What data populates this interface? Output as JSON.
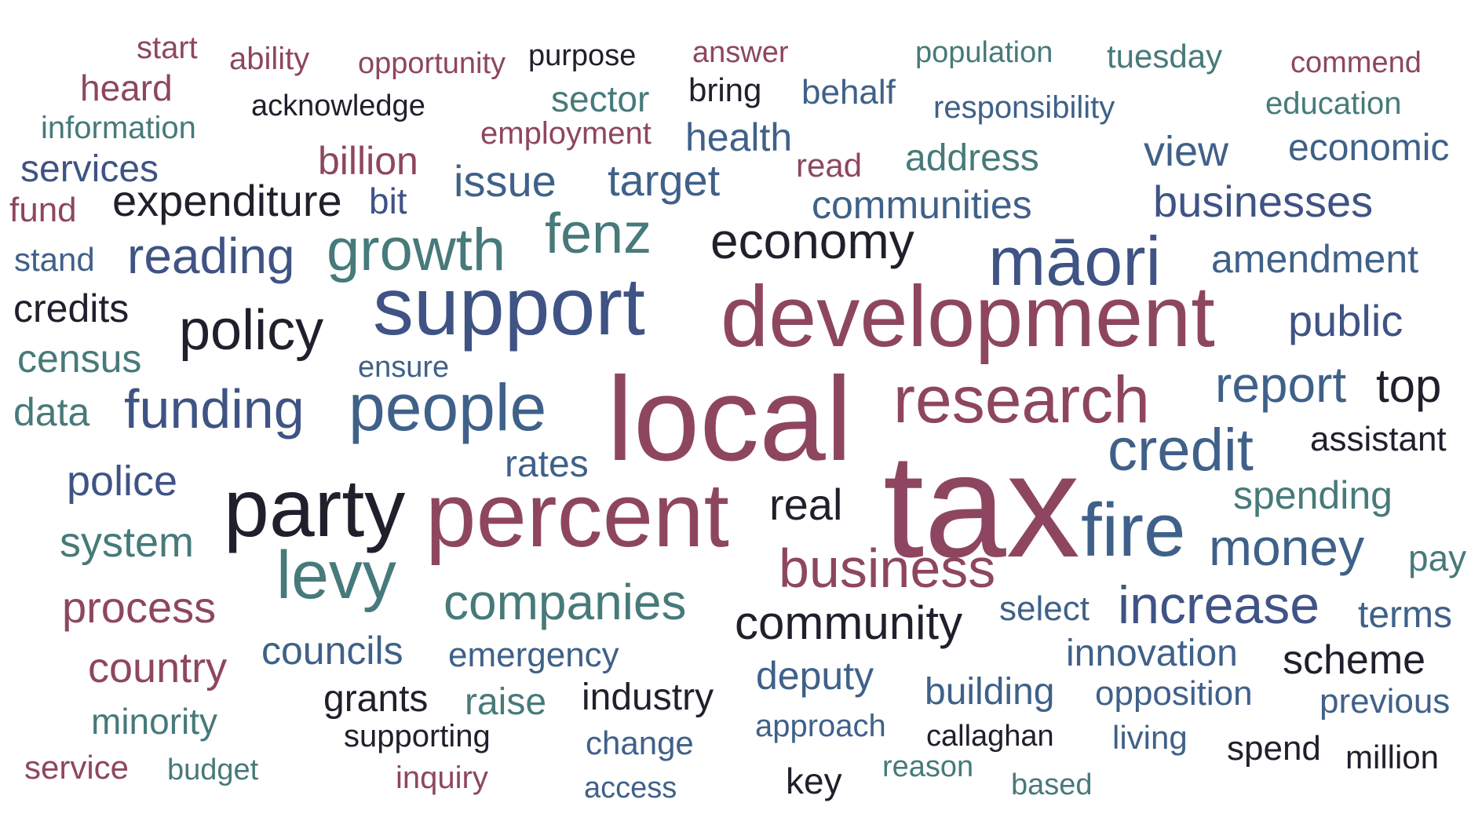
{
  "palette": {
    "crimson": "#8e4660",
    "navy": "#3f5384",
    "teal": "#477a7a",
    "slate": "#3f6189",
    "black": "#20202c"
  },
  "words": [
    {
      "text": "start",
      "color": "crimson"
    },
    {
      "text": "ability",
      "color": "crimson"
    },
    {
      "text": "opportunity",
      "color": "crimson"
    },
    {
      "text": "purpose",
      "color": "black"
    },
    {
      "text": "answer",
      "color": "crimson"
    },
    {
      "text": "population",
      "color": "teal"
    },
    {
      "text": "tuesday",
      "color": "teal"
    },
    {
      "text": "commend",
      "color": "crimson"
    },
    {
      "text": "heard",
      "color": "crimson"
    },
    {
      "text": "acknowledge",
      "color": "black"
    },
    {
      "text": "sector",
      "color": "teal"
    },
    {
      "text": "bring",
      "color": "black"
    },
    {
      "text": "behalf",
      "color": "slate"
    },
    {
      "text": "responsibility",
      "color": "slate"
    },
    {
      "text": "education",
      "color": "teal"
    },
    {
      "text": "information",
      "color": "teal"
    },
    {
      "text": "employment",
      "color": "crimson"
    },
    {
      "text": "health",
      "color": "slate"
    },
    {
      "text": "services",
      "color": "navy"
    },
    {
      "text": "billion",
      "color": "crimson"
    },
    {
      "text": "read",
      "color": "crimson"
    },
    {
      "text": "address",
      "color": "teal"
    },
    {
      "text": "view",
      "color": "slate"
    },
    {
      "text": "economic",
      "color": "slate"
    },
    {
      "text": "issue",
      "color": "slate"
    },
    {
      "text": "target",
      "color": "slate"
    },
    {
      "text": "fund",
      "color": "crimson"
    },
    {
      "text": "expenditure",
      "color": "black"
    },
    {
      "text": "bit",
      "color": "navy"
    },
    {
      "text": "communities",
      "color": "slate"
    },
    {
      "text": "businesses",
      "color": "navy"
    },
    {
      "text": "fenz",
      "color": "teal"
    },
    {
      "text": "stand",
      "color": "slate"
    },
    {
      "text": "reading",
      "color": "navy"
    },
    {
      "text": "growth",
      "color": "teal"
    },
    {
      "text": "economy",
      "color": "black"
    },
    {
      "text": "māori",
      "color": "navy"
    },
    {
      "text": "amendment",
      "color": "slate"
    },
    {
      "text": "credits",
      "color": "black"
    },
    {
      "text": "support",
      "color": "navy"
    },
    {
      "text": "development",
      "color": "crimson"
    },
    {
      "text": "public",
      "color": "navy"
    },
    {
      "text": "policy",
      "color": "black"
    },
    {
      "text": "census",
      "color": "teal"
    },
    {
      "text": "ensure",
      "color": "slate"
    },
    {
      "text": "data",
      "color": "teal"
    },
    {
      "text": "funding",
      "color": "navy"
    },
    {
      "text": "people",
      "color": "slate"
    },
    {
      "text": "local",
      "color": "crimson"
    },
    {
      "text": "research",
      "color": "crimson"
    },
    {
      "text": "report",
      "color": "slate"
    },
    {
      "text": "top",
      "color": "black"
    },
    {
      "text": "credit",
      "color": "slate"
    },
    {
      "text": "assistant",
      "color": "black"
    },
    {
      "text": "rates",
      "color": "slate"
    },
    {
      "text": "police",
      "color": "navy"
    },
    {
      "text": "party",
      "color": "black"
    },
    {
      "text": "percent",
      "color": "crimson"
    },
    {
      "text": "real",
      "color": "black"
    },
    {
      "text": "tax",
      "color": "crimson"
    },
    {
      "text": "spending",
      "color": "teal"
    },
    {
      "text": "fire",
      "color": "slate"
    },
    {
      "text": "system",
      "color": "teal"
    },
    {
      "text": "money",
      "color": "slate"
    },
    {
      "text": "pay",
      "color": "teal"
    },
    {
      "text": "levy",
      "color": "teal"
    },
    {
      "text": "business",
      "color": "crimson"
    },
    {
      "text": "process",
      "color": "crimson"
    },
    {
      "text": "companies",
      "color": "teal"
    },
    {
      "text": "select",
      "color": "slate"
    },
    {
      "text": "increase",
      "color": "navy"
    },
    {
      "text": "terms",
      "color": "slate"
    },
    {
      "text": "community",
      "color": "black"
    },
    {
      "text": "councils",
      "color": "slate"
    },
    {
      "text": "emergency",
      "color": "slate"
    },
    {
      "text": "innovation",
      "color": "slate"
    },
    {
      "text": "country",
      "color": "crimson"
    },
    {
      "text": "scheme",
      "color": "black"
    },
    {
      "text": "deputy",
      "color": "slate"
    },
    {
      "text": "building",
      "color": "slate"
    },
    {
      "text": "opposition",
      "color": "slate"
    },
    {
      "text": "previous",
      "color": "slate"
    },
    {
      "text": "grants",
      "color": "black"
    },
    {
      "text": "raise",
      "color": "teal"
    },
    {
      "text": "industry",
      "color": "black"
    },
    {
      "text": "minority",
      "color": "teal"
    },
    {
      "text": "approach",
      "color": "slate"
    },
    {
      "text": "supporting",
      "color": "black"
    },
    {
      "text": "callaghan",
      "color": "black"
    },
    {
      "text": "living",
      "color": "slate"
    },
    {
      "text": "change",
      "color": "slate"
    },
    {
      "text": "spend",
      "color": "black"
    },
    {
      "text": "million",
      "color": "black"
    },
    {
      "text": "service",
      "color": "crimson"
    },
    {
      "text": "budget",
      "color": "teal"
    },
    {
      "text": "reason",
      "color": "teal"
    },
    {
      "text": "inquiry",
      "color": "crimson"
    },
    {
      "text": "key",
      "color": "black"
    },
    {
      "text": "access",
      "color": "slate"
    },
    {
      "text": "based",
      "color": "teal"
    }
  ]
}
